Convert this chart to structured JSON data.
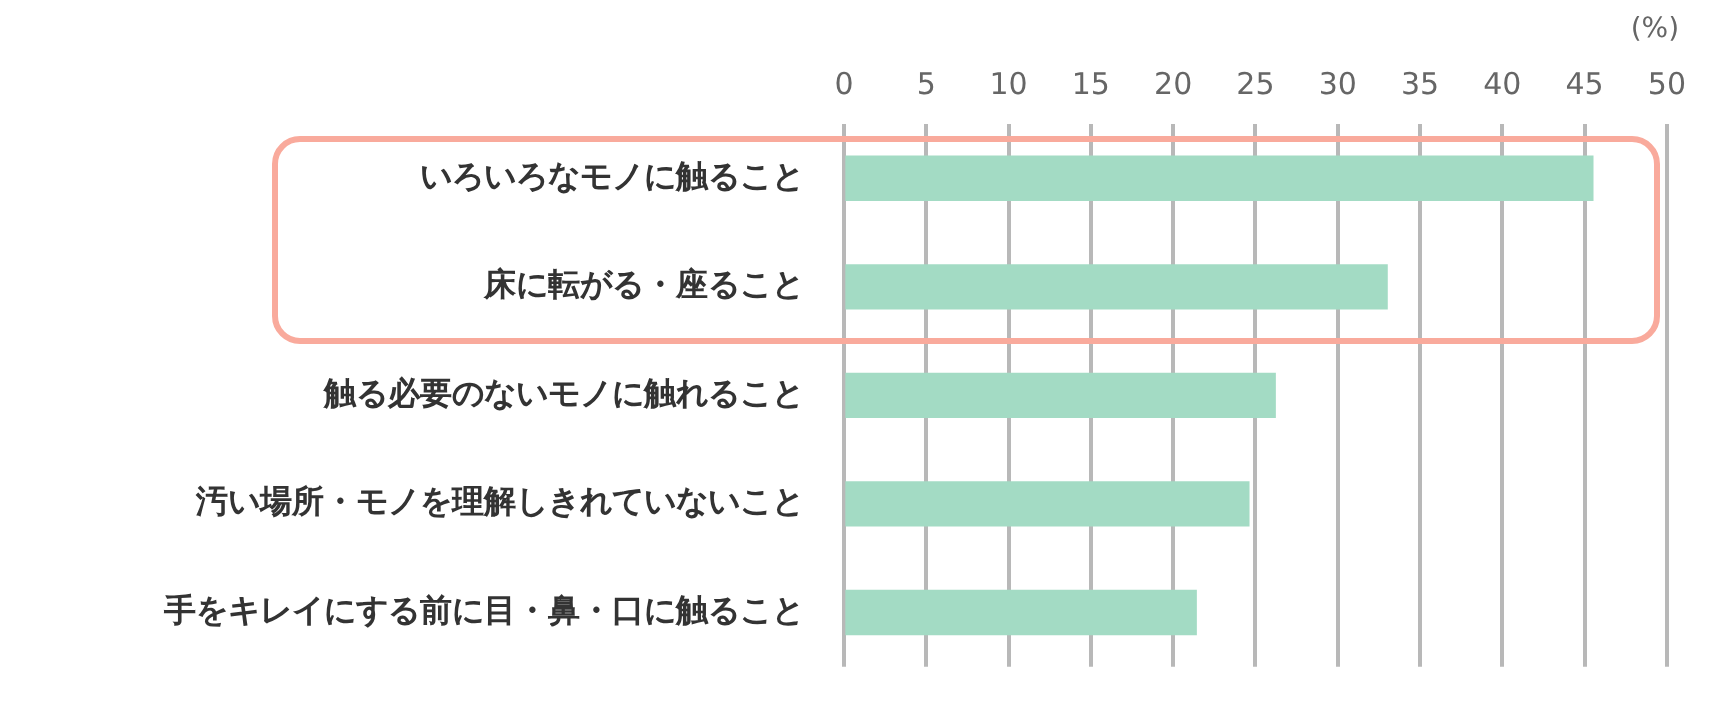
{
  "chart_data": {
    "type": "bar",
    "orientation": "horizontal",
    "xlabel": "(%)",
    "categories": [
      "いろいろなモノに触ること",
      "床に転がる・座ること",
      "触る必要のないモノに触れること",
      "汚い場所・モノを理解しきれていないこと",
      "手をキレイにする前に目・鼻・口に触ること"
    ],
    "values": [
      45.5,
      33.0,
      26.2,
      24.6,
      21.4
    ],
    "color": "#a3dbc4",
    "xlim": [
      0,
      50
    ],
    "xticks": [
      0,
      5,
      10,
      15,
      20,
      25,
      30,
      35,
      40,
      45,
      50
    ],
    "grid": "x"
  }
}
